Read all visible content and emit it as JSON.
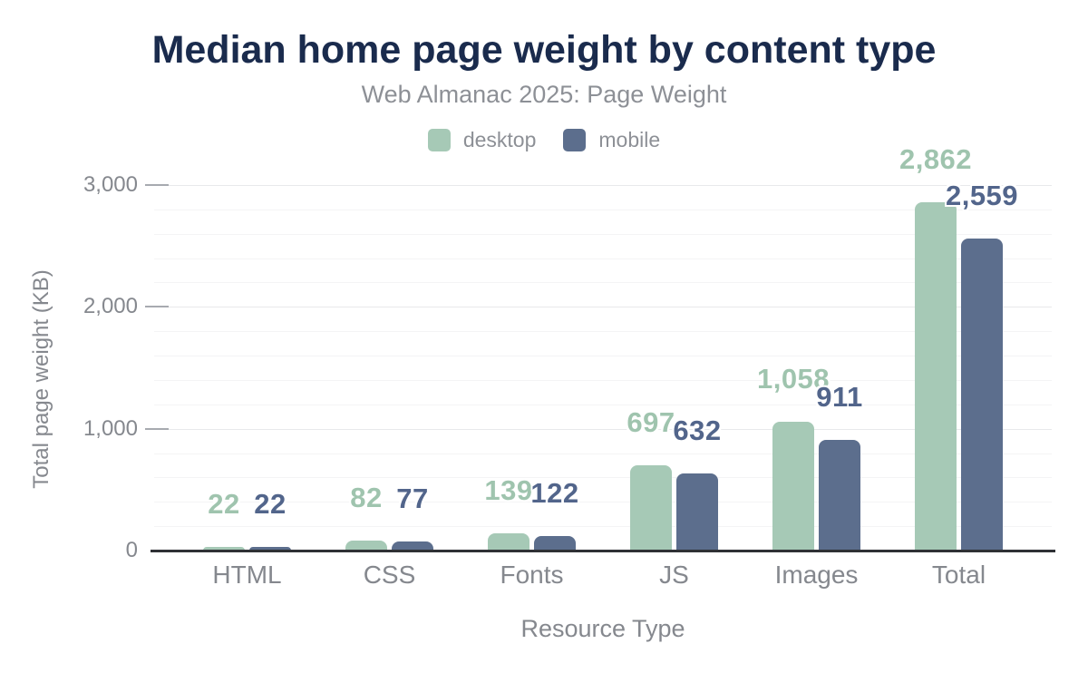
{
  "header": {
    "title": "Median home page weight by content type",
    "subtitle": "Web Almanac 2025: Page Weight"
  },
  "legend": {
    "items": [
      {
        "label": "desktop",
        "color": "#a6c9b6"
      },
      {
        "label": "mobile",
        "color": "#5c6e8d"
      }
    ]
  },
  "chart_data": {
    "type": "bar",
    "title": "Median home page weight by content type",
    "subtitle": "Web Almanac 2025: Page Weight",
    "categories": [
      "HTML",
      "CSS",
      "Fonts",
      "JS",
      "Images",
      "Total"
    ],
    "series": [
      {
        "name": "desktop",
        "color": "#a6c9b6",
        "label_color": "#9fc4ae",
        "values": [
          22,
          82,
          139,
          697,
          1058,
          2862
        ],
        "value_labels": [
          "22",
          "82",
          "139",
          "697",
          "1,058",
          "2,862"
        ]
      },
      {
        "name": "mobile",
        "color": "#5c6e8d",
        "label_color": "#52658b",
        "values": [
          22,
          77,
          122,
          632,
          911,
          2559
        ],
        "value_labels": [
          "22",
          "77",
          "122",
          "632",
          "911",
          "2,559"
        ]
      }
    ],
    "xlabel": "Resource Type",
    "ylabel": "Total page weight (KB)",
    "ylim": [
      0,
      3000
    ],
    "yticks": [
      0,
      1000,
      2000,
      3000
    ],
    "ytick_labels": [
      "0",
      "1,000",
      "2,000",
      "3,000"
    ],
    "minor_grid_step": 200,
    "grid": "horizontal",
    "legend_position": "top"
  }
}
